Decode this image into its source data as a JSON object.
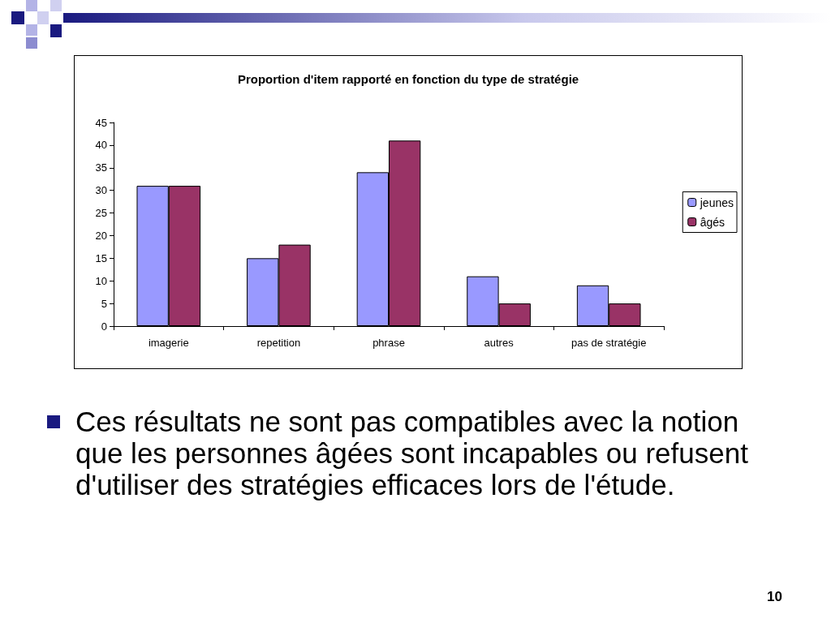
{
  "chart_data": {
    "type": "bar",
    "title": "Proportion d'item rapporté en fonction du type de stratégie",
    "categories": [
      "imagerie",
      "repetition",
      "phrase",
      "autres",
      "pas de stratégie"
    ],
    "series": [
      {
        "name": "jeunes",
        "color": "#9999ff",
        "values": [
          31,
          15,
          34,
          11,
          9
        ]
      },
      {
        "name": "âgés",
        "color": "#993366",
        "values": [
          31,
          18,
          41,
          5,
          5
        ]
      }
    ],
    "ylim": [
      0,
      45
    ],
    "yticks": [
      0,
      5,
      10,
      15,
      20,
      25,
      30,
      35,
      40,
      45
    ],
    "grid": false,
    "legend": "right",
    "annotations": [
      "Ces résultats ne sont pas compatibles avec la notion que les personnes âgées sont incapables ou refusent d'utiliser des stratégies efficaces lors de l'étude.",
      "10"
    ]
  }
}
